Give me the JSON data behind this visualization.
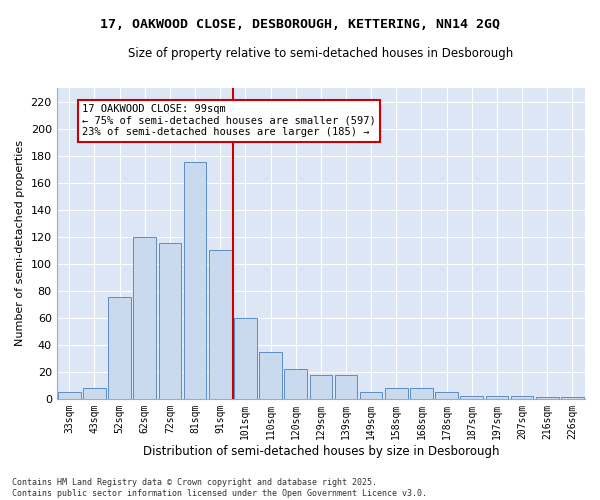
{
  "title_line1": "17, OAKWOOD CLOSE, DESBOROUGH, KETTERING, NN14 2GQ",
  "title_line2": "Size of property relative to semi-detached houses in Desborough",
  "xlabel": "Distribution of semi-detached houses by size in Desborough",
  "ylabel": "Number of semi-detached properties",
  "categories": [
    "33sqm",
    "43sqm",
    "52sqm",
    "62sqm",
    "72sqm",
    "81sqm",
    "91sqm",
    "101sqm",
    "110sqm",
    "120sqm",
    "129sqm",
    "139sqm",
    "149sqm",
    "158sqm",
    "168sqm",
    "178sqm",
    "187sqm",
    "197sqm",
    "207sqm",
    "216sqm",
    "226sqm"
  ],
  "values": [
    5,
    8,
    75,
    120,
    115,
    175,
    110,
    60,
    35,
    22,
    18,
    18,
    5,
    8,
    8,
    5,
    2,
    2,
    2,
    1,
    1
  ],
  "bar_color": "#c9d9ee",
  "bar_edge_color": "#5b8ec4",
  "vline_x_index": 7,
  "vline_color": "#cc0000",
  "annotation_text": "17 OAKWOOD CLOSE: 99sqm\n← 75% of semi-detached houses are smaller (597)\n23% of semi-detached houses are larger (185) →",
  "annotation_box_color": "#ffffff",
  "annotation_box_edge": "#cc0000",
  "ylim": [
    0,
    230
  ],
  "yticks": [
    0,
    20,
    40,
    60,
    80,
    100,
    120,
    140,
    160,
    180,
    200,
    220
  ],
  "fig_bg_color": "#ffffff",
  "plot_bg_color": "#dce6f5",
  "grid_color": "#ffffff",
  "footer_text": "Contains HM Land Registry data © Crown copyright and database right 2025.\nContains public sector information licensed under the Open Government Licence v3.0.",
  "fig_width": 6.0,
  "fig_height": 5.0,
  "dpi": 100
}
